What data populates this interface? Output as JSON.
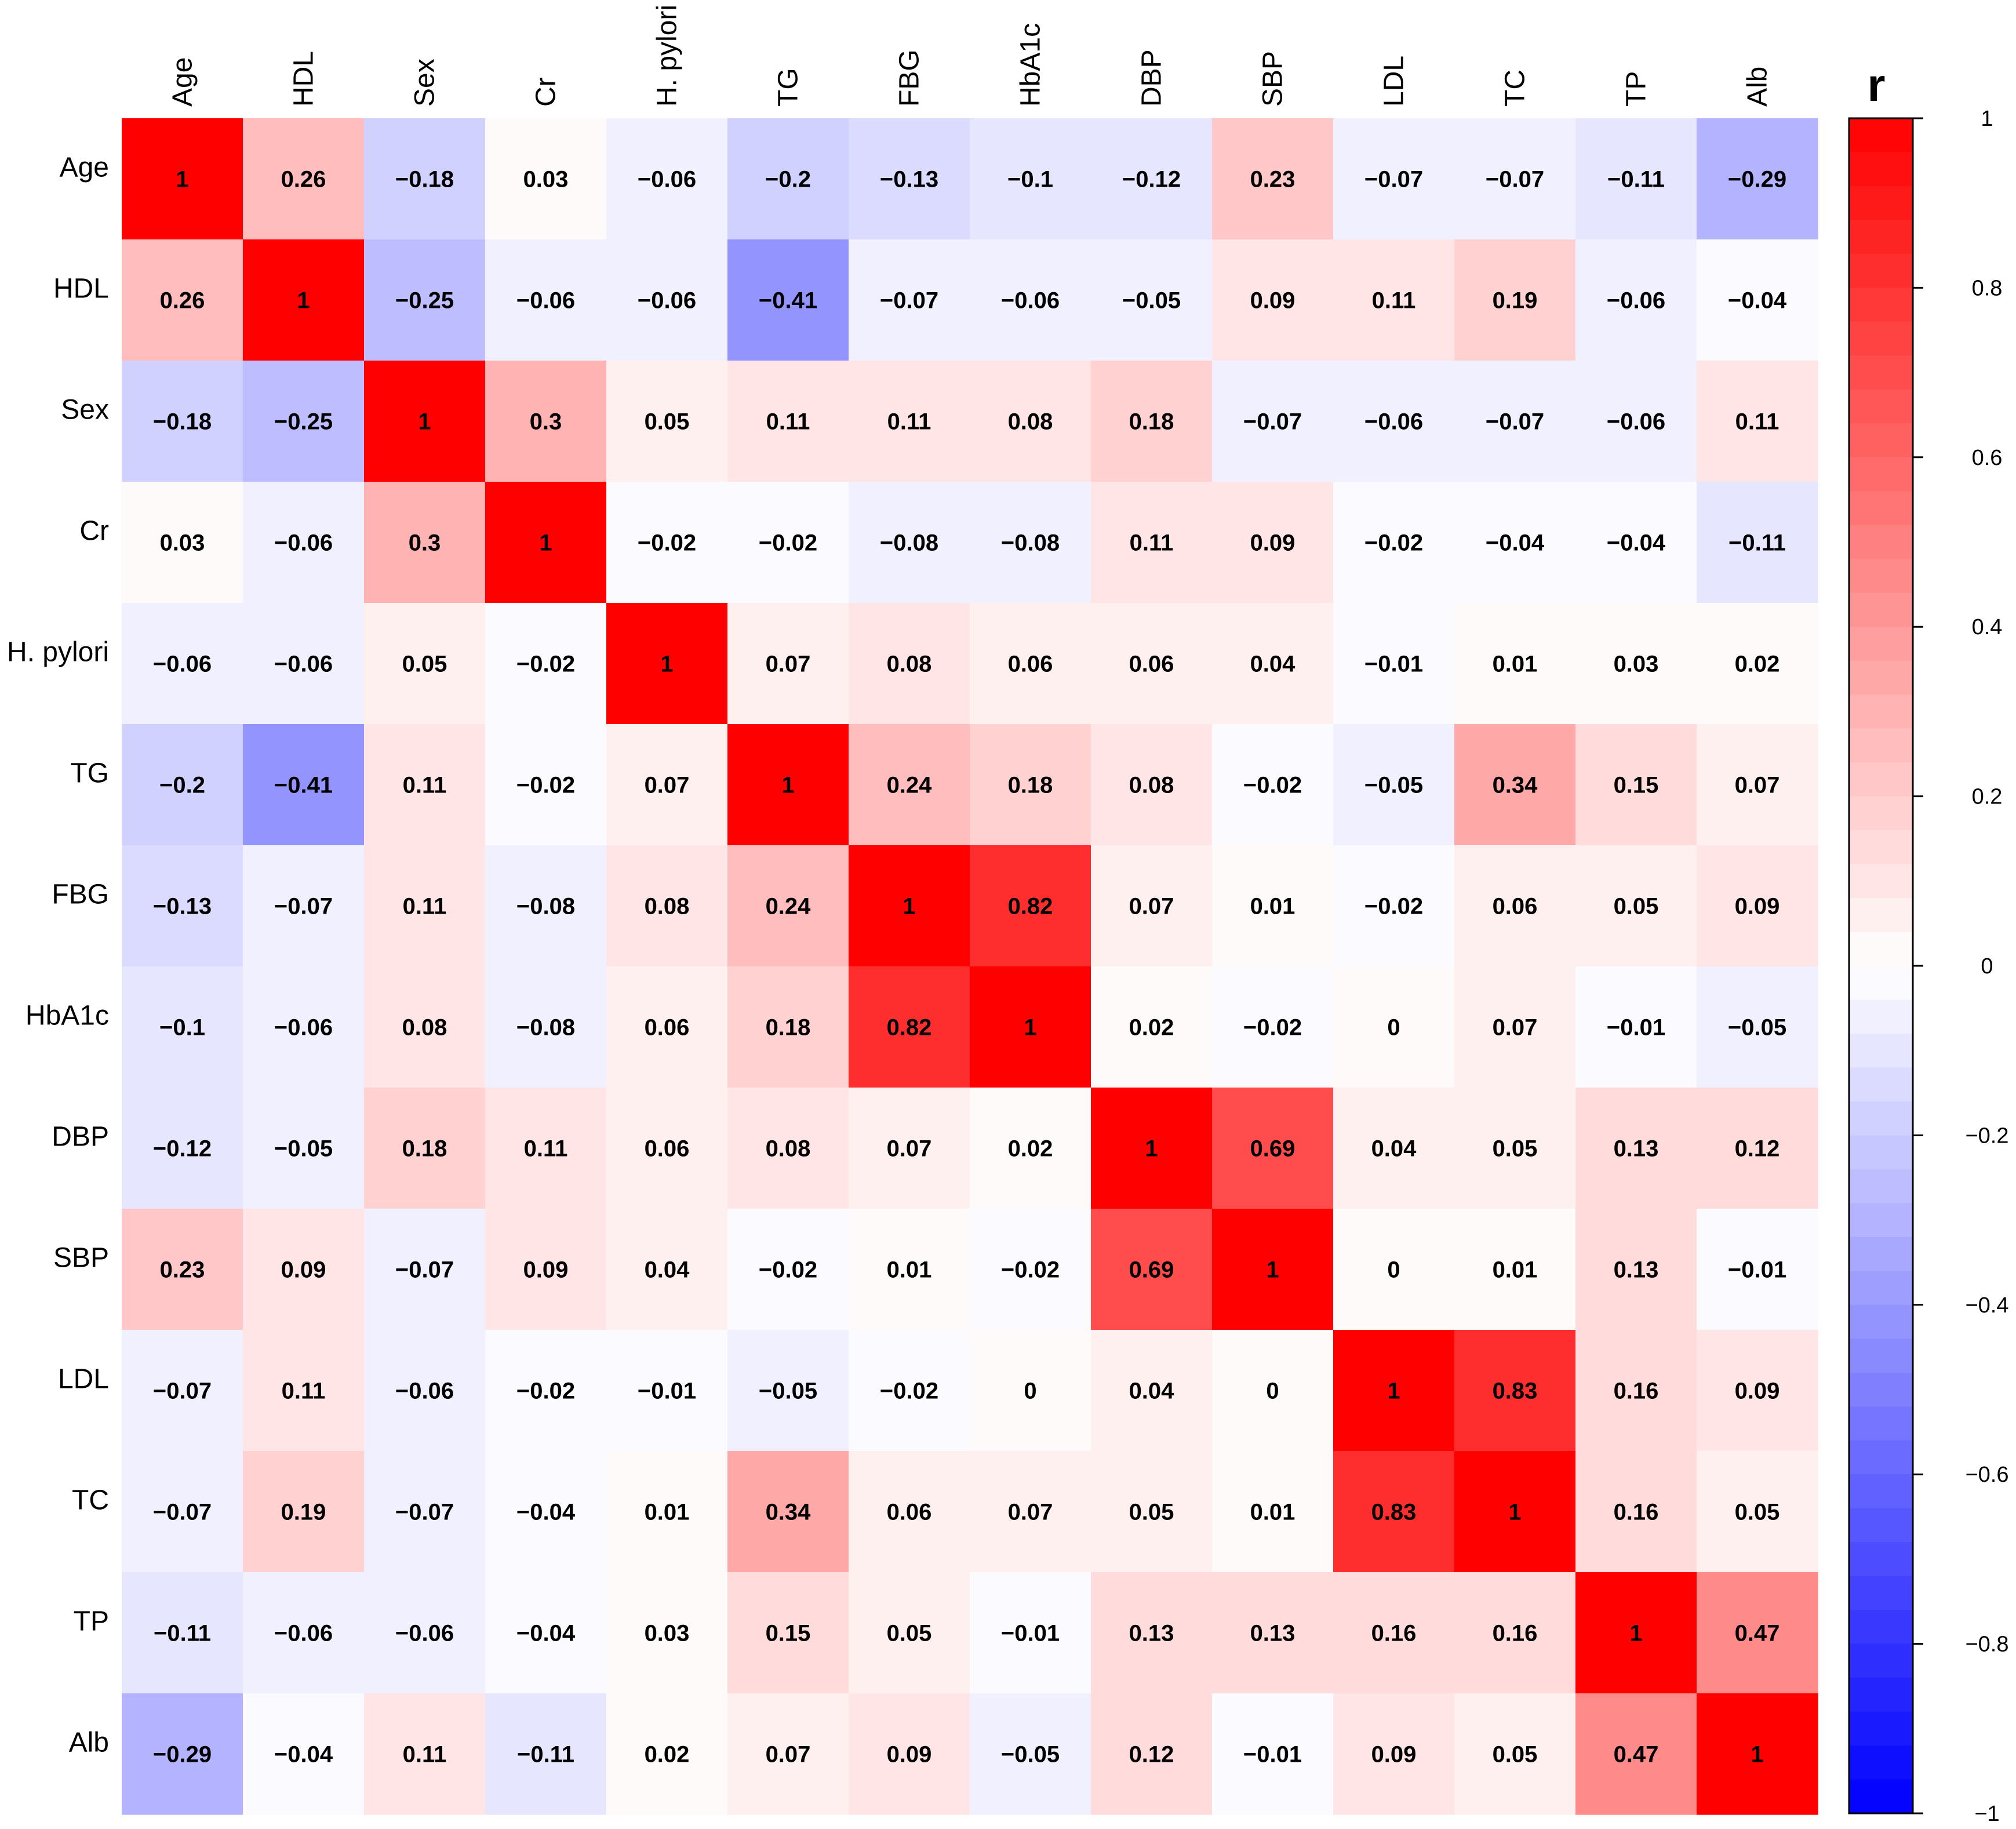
{
  "chart_data": {
    "type": "heatmap",
    "title": "",
    "xlabel": "",
    "ylabel": "",
    "variables": [
      "Age",
      "HDL",
      "Sex",
      "Cr",
      "H. pylori",
      "TG",
      "FBG",
      "HbA1c",
      "DBP",
      "SBP",
      "LDL",
      "TC",
      "TP",
      "Alb"
    ],
    "matrix": [
      [
        1,
        0.26,
        -0.18,
        0.03,
        -0.06,
        -0.2,
        -0.13,
        -0.1,
        -0.12,
        0.23,
        -0.07,
        -0.07,
        -0.11,
        -0.29
      ],
      [
        0.26,
        1,
        -0.25,
        -0.06,
        -0.06,
        -0.41,
        -0.07,
        -0.06,
        -0.05,
        0.09,
        0.11,
        0.19,
        -0.06,
        -0.04
      ],
      [
        -0.18,
        -0.25,
        1,
        0.3,
        0.05,
        0.11,
        0.11,
        0.08,
        0.18,
        -0.07,
        -0.06,
        -0.07,
        -0.06,
        0.11
      ],
      [
        0.03,
        -0.06,
        0.3,
        1,
        -0.02,
        -0.02,
        -0.08,
        -0.08,
        0.11,
        0.09,
        -0.02,
        -0.04,
        -0.04,
        -0.11
      ],
      [
        -0.06,
        -0.06,
        0.05,
        -0.02,
        1,
        0.07,
        0.08,
        0.06,
        0.06,
        0.04,
        -0.01,
        0.01,
        0.03,
        0.02
      ],
      [
        -0.2,
        -0.41,
        0.11,
        -0.02,
        0.07,
        1,
        0.24,
        0.18,
        0.08,
        -0.02,
        -0.05,
        0.34,
        0.15,
        0.07
      ],
      [
        -0.13,
        -0.07,
        0.11,
        -0.08,
        0.08,
        0.24,
        1,
        0.82,
        0.07,
        0.01,
        -0.02,
        0.06,
        0.05,
        0.09
      ],
      [
        -0.1,
        -0.06,
        0.08,
        -0.08,
        0.06,
        0.18,
        0.82,
        1,
        0.02,
        -0.02,
        0,
        0.07,
        -0.01,
        -0.05
      ],
      [
        -0.12,
        -0.05,
        0.18,
        0.11,
        0.06,
        0.08,
        0.07,
        0.02,
        1,
        0.69,
        0.04,
        0.05,
        0.13,
        0.12
      ],
      [
        0.23,
        0.09,
        -0.07,
        0.09,
        0.04,
        -0.02,
        0.01,
        -0.02,
        0.69,
        1,
        0,
        0.01,
        0.13,
        -0.01
      ],
      [
        -0.07,
        0.11,
        -0.06,
        -0.02,
        -0.01,
        -0.05,
        -0.02,
        0,
        0.04,
        0,
        1,
        0.83,
        0.16,
        0.09
      ],
      [
        -0.07,
        0.19,
        -0.07,
        -0.04,
        0.01,
        0.34,
        0.06,
        0.07,
        0.05,
        0.01,
        0.83,
        1,
        0.16,
        0.05
      ],
      [
        -0.11,
        -0.06,
        -0.06,
        -0.04,
        0.03,
        0.15,
        0.05,
        -0.01,
        0.13,
        0.13,
        0.16,
        0.16,
        1,
        0.47
      ],
      [
        -0.29,
        -0.04,
        0.11,
        -0.11,
        0.02,
        0.07,
        0.09,
        -0.05,
        0.12,
        -0.01,
        0.09,
        0.05,
        0.47,
        1
      ]
    ],
    "colorbar": {
      "title": "r",
      "range": [
        -1,
        1
      ],
      "ticks": [
        1,
        0.8,
        0.6,
        0.4,
        0.2,
        0,
        -0.2,
        -0.4,
        -0.6,
        -0.8,
        -1
      ],
      "tick_labels": [
        "1",
        "0.8",
        "0.6",
        "0.4",
        "0.2",
        "0",
        "−0.2",
        "−0.4",
        "−0.6",
        "−0.8",
        "−1"
      ],
      "steps": 50,
      "negative_color": "#0000ff",
      "zero_color": "#ffffff",
      "positive_color": "#ff0000"
    },
    "legend": "right",
    "grid": false
  }
}
